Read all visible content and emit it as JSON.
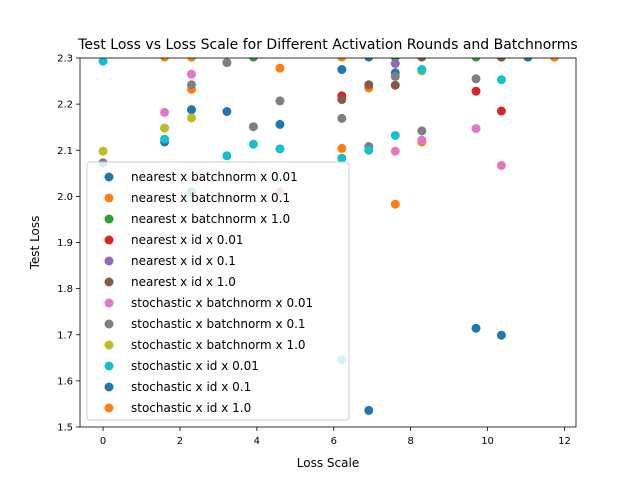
{
  "chart_data": {
    "type": "scatter",
    "title": "Test Loss vs Loss Scale for Different Activation Rounds and Batchnorms",
    "xlabel": "Loss Scale",
    "ylabel": "Test Loss",
    "xlim": [
      -0.6,
      12.3
    ],
    "ylim": [
      1.5,
      2.3
    ],
    "xticks": [
      0,
      2,
      4,
      6,
      8,
      10,
      12
    ],
    "yticks": [
      1.5,
      1.6,
      1.7,
      1.8,
      1.9,
      2.0,
      2.1,
      2.2,
      2.3
    ],
    "grid": false,
    "legend_position": "lower-left",
    "series": [
      {
        "name": "nearest x batchnorm x 0.01",
        "color": "#1f77b4",
        "points": [
          [
            1.6,
            2.118
          ],
          [
            2.3,
            2.188
          ],
          [
            3.22,
            2.184
          ],
          [
            4.6,
            2.156
          ],
          [
            6.21,
            2.275
          ],
          [
            6.91,
            2.302
          ],
          [
            7.6,
            2.268
          ]
        ]
      },
      {
        "name": "nearest x batchnorm x 0.1",
        "color": "#ff7f0e",
        "points": [
          [
            1.6,
            2.302
          ],
          [
            2.3,
            2.232
          ],
          [
            4.6,
            2.278
          ],
          [
            6.21,
            2.104
          ],
          [
            6.91,
            2.235
          ],
          [
            7.6,
            1.983
          ],
          [
            8.29,
            2.118
          ],
          [
            10.36,
            2.302
          ]
        ]
      },
      {
        "name": "nearest x batchnorm x 1.0",
        "color": "#2ca02c",
        "points": [
          [
            3.91,
            2.302
          ],
          [
            7.6,
            2.302
          ],
          [
            9.7,
            2.302
          ]
        ]
      },
      {
        "name": "nearest x id x 0.01",
        "color": "#d62728",
        "points": [
          [
            6.21,
            2.218
          ],
          [
            9.7,
            2.228
          ],
          [
            10.36,
            2.185
          ]
        ]
      },
      {
        "name": "nearest x id x 0.1",
        "color": "#9467bd",
        "points": [
          [
            7.6,
            2.288
          ]
        ]
      },
      {
        "name": "nearest x id x 1.0",
        "color": "#8c564b",
        "points": [
          [
            2.3,
            2.302
          ],
          [
            6.21,
            2.21
          ],
          [
            6.91,
            2.242
          ],
          [
            7.6,
            2.241
          ],
          [
            8.29,
            2.302
          ],
          [
            10.36,
            2.302
          ],
          [
            11.05,
            2.302
          ],
          [
            11.74,
            2.302
          ]
        ]
      },
      {
        "name": "stochastic x batchnorm x 0.01",
        "color": "#e377c2",
        "points": [
          [
            1.6,
            2.182
          ],
          [
            2.3,
            2.265
          ],
          [
            4.6,
            2.01
          ],
          [
            7.6,
            2.098
          ],
          [
            8.29,
            2.122
          ],
          [
            9.7,
            2.147
          ],
          [
            10.36,
            2.067
          ]
        ]
      },
      {
        "name": "stochastic x batchnorm x 0.1",
        "color": "#7f7f7f",
        "points": [
          [
            0.0,
            2.073
          ],
          [
            2.3,
            2.242
          ],
          [
            3.22,
            2.29
          ],
          [
            3.91,
            2.151
          ],
          [
            4.6,
            2.207
          ],
          [
            6.21,
            2.169
          ],
          [
            6.91,
            2.108
          ],
          [
            7.6,
            2.26
          ],
          [
            8.29,
            2.142
          ],
          [
            9.7,
            2.255
          ]
        ]
      },
      {
        "name": "stochastic x batchnorm x 1.0",
        "color": "#bcbd22",
        "points": [
          [
            0.0,
            2.098
          ],
          [
            1.6,
            2.148
          ],
          [
            2.3,
            2.17
          ],
          [
            8.29,
            2.272
          ],
          [
            11.05,
            2.302
          ]
        ]
      },
      {
        "name": "stochastic x id x 0.01",
        "color": "#17becf",
        "points": [
          [
            0.0,
            2.293
          ],
          [
            1.6,
            2.124
          ],
          [
            2.3,
            2.01
          ],
          [
            3.22,
            2.088
          ],
          [
            3.91,
            2.113
          ],
          [
            4.6,
            2.103
          ],
          [
            6.21,
            1.646
          ],
          [
            6.21,
            2.083
          ],
          [
            6.91,
            2.1
          ],
          [
            7.6,
            2.132
          ],
          [
            8.29,
            2.275
          ],
          [
            10.36,
            2.253
          ]
        ]
      },
      {
        "name": "stochastic x id x 0.1",
        "color": "#1f77b4",
        "points": [
          [
            6.91,
            1.536
          ],
          [
            9.7,
            1.714
          ],
          [
            10.36,
            1.699
          ],
          [
            11.05,
            2.302
          ]
        ]
      },
      {
        "name": "stochastic x id x 1.0",
        "color": "#ff7f0e",
        "points": [
          [
            2.3,
            2.302
          ],
          [
            6.21,
            2.302
          ],
          [
            11.74,
            2.302
          ]
        ]
      }
    ]
  }
}
